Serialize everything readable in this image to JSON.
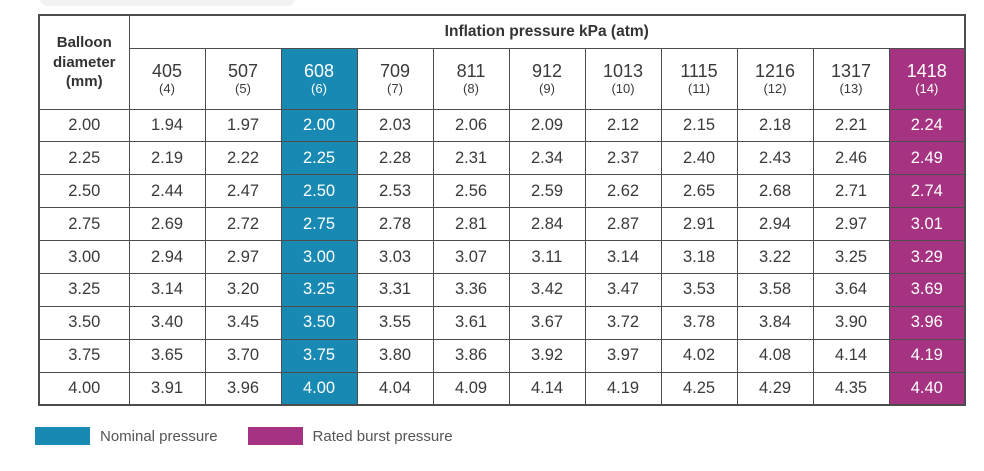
{
  "colors": {
    "nominal": "#1789b3",
    "burst": "#a53381",
    "border": "#4d4d4d",
    "text": "#3a3a3a"
  },
  "table": {
    "corner_header_lines": [
      "Balloon",
      "diameter",
      "(mm)"
    ],
    "group_header": "Inflation pressure kPa (atm)",
    "pressure_columns": [
      {
        "kpa": "405",
        "atm": "(4)",
        "highlight": "none"
      },
      {
        "kpa": "507",
        "atm": "(5)",
        "highlight": "none"
      },
      {
        "kpa": "608",
        "atm": "(6)",
        "highlight": "nominal"
      },
      {
        "kpa": "709",
        "atm": "(7)",
        "highlight": "none"
      },
      {
        "kpa": "811",
        "atm": "(8)",
        "highlight": "none"
      },
      {
        "kpa": "912",
        "atm": "(9)",
        "highlight": "none"
      },
      {
        "kpa": "1013",
        "atm": "(10)",
        "highlight": "none"
      },
      {
        "kpa": "1115",
        "atm": "(11)",
        "highlight": "none"
      },
      {
        "kpa": "1216",
        "atm": "(12)",
        "highlight": "none"
      },
      {
        "kpa": "1317",
        "atm": "(13)",
        "highlight": "none"
      },
      {
        "kpa": "1418",
        "atm": "(14)",
        "highlight": "burst"
      }
    ],
    "rows": [
      {
        "diameter": "2.00",
        "values": [
          "1.94",
          "1.97",
          "2.00",
          "2.03",
          "2.06",
          "2.09",
          "2.12",
          "2.15",
          "2.18",
          "2.21",
          "2.24"
        ]
      },
      {
        "diameter": "2.25",
        "values": [
          "2.19",
          "2.22",
          "2.25",
          "2.28",
          "2.31",
          "2.34",
          "2.37",
          "2.40",
          "2.43",
          "2.46",
          "2.49"
        ]
      },
      {
        "diameter": "2.50",
        "values": [
          "2.44",
          "2.47",
          "2.50",
          "2.53",
          "2.56",
          "2.59",
          "2.62",
          "2.65",
          "2.68",
          "2.71",
          "2.74"
        ]
      },
      {
        "diameter": "2.75",
        "values": [
          "2.69",
          "2.72",
          "2.75",
          "2.78",
          "2.81",
          "2.84",
          "2.87",
          "2.91",
          "2.94",
          "2.97",
          "3.01"
        ]
      },
      {
        "diameter": "3.00",
        "values": [
          "2.94",
          "2.97",
          "3.00",
          "3.03",
          "3.07",
          "3.11",
          "3.14",
          "3.18",
          "3.22",
          "3.25",
          "3.29"
        ]
      },
      {
        "diameter": "3.25",
        "values": [
          "3.14",
          "3.20",
          "3.25",
          "3.31",
          "3.36",
          "3.42",
          "3.47",
          "3.53",
          "3.58",
          "3.64",
          "3.69"
        ]
      },
      {
        "diameter": "3.50",
        "values": [
          "3.40",
          "3.45",
          "3.50",
          "3.55",
          "3.61",
          "3.67",
          "3.72",
          "3.78",
          "3.84",
          "3.90",
          "3.96"
        ]
      },
      {
        "diameter": "3.75",
        "values": [
          "3.65",
          "3.70",
          "3.75",
          "3.80",
          "3.86",
          "3.92",
          "3.97",
          "4.02",
          "4.08",
          "4.14",
          "4.19"
        ]
      },
      {
        "diameter": "4.00",
        "values": [
          "3.91",
          "3.96",
          "4.00",
          "4.04",
          "4.09",
          "4.14",
          "4.19",
          "4.25",
          "4.29",
          "4.35",
          "4.40"
        ]
      }
    ]
  },
  "legend": [
    {
      "label": "Nominal pressure",
      "color_key": "nominal"
    },
    {
      "label": "Rated burst pressure",
      "color_key": "burst"
    }
  ],
  "chart_data": {
    "type": "table",
    "title": "Inflation pressure kPa (atm)",
    "row_header": "Balloon diameter (mm)",
    "columns_kpa": [
      405,
      507,
      608,
      709,
      811,
      912,
      1013,
      1115,
      1216,
      1317,
      1418
    ],
    "columns_atm": [
      4,
      5,
      6,
      7,
      8,
      9,
      10,
      11,
      12,
      13,
      14
    ],
    "nominal_pressure_kpa": 608,
    "rated_burst_pressure_kpa": 1418,
    "rows": [
      {
        "diameter_mm": 2.0,
        "values": [
          1.94,
          1.97,
          2.0,
          2.03,
          2.06,
          2.09,
          2.12,
          2.15,
          2.18,
          2.21,
          2.24
        ]
      },
      {
        "diameter_mm": 2.25,
        "values": [
          2.19,
          2.22,
          2.25,
          2.28,
          2.31,
          2.34,
          2.37,
          2.4,
          2.43,
          2.46,
          2.49
        ]
      },
      {
        "diameter_mm": 2.5,
        "values": [
          2.44,
          2.47,
          2.5,
          2.53,
          2.56,
          2.59,
          2.62,
          2.65,
          2.68,
          2.71,
          2.74
        ]
      },
      {
        "diameter_mm": 2.75,
        "values": [
          2.69,
          2.72,
          2.75,
          2.78,
          2.81,
          2.84,
          2.87,
          2.91,
          2.94,
          2.97,
          3.01
        ]
      },
      {
        "diameter_mm": 3.0,
        "values": [
          2.94,
          2.97,
          3.0,
          3.03,
          3.07,
          3.11,
          3.14,
          3.18,
          3.22,
          3.25,
          3.29
        ]
      },
      {
        "diameter_mm": 3.25,
        "values": [
          3.14,
          3.2,
          3.25,
          3.31,
          3.36,
          3.42,
          3.47,
          3.53,
          3.58,
          3.64,
          3.69
        ]
      },
      {
        "diameter_mm": 3.5,
        "values": [
          3.4,
          3.45,
          3.5,
          3.55,
          3.61,
          3.67,
          3.72,
          3.78,
          3.84,
          3.9,
          3.96
        ]
      },
      {
        "diameter_mm": 3.75,
        "values": [
          3.65,
          3.7,
          3.75,
          3.8,
          3.86,
          3.92,
          3.97,
          4.02,
          4.08,
          4.14,
          4.19
        ]
      },
      {
        "diameter_mm": 4.0,
        "values": [
          3.91,
          3.96,
          4.0,
          4.04,
          4.09,
          4.14,
          4.19,
          4.25,
          4.29,
          4.35,
          4.4
        ]
      }
    ],
    "legend_entries": [
      "Nominal pressure",
      "Rated burst pressure"
    ]
  }
}
